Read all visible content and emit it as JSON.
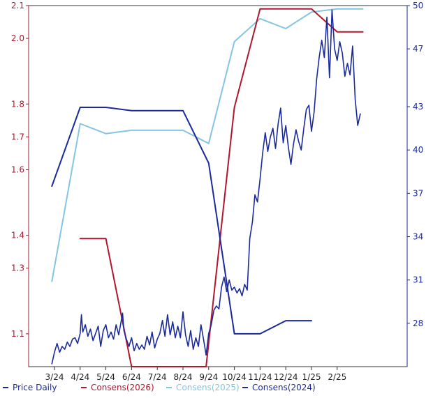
{
  "chart_data": {
    "type": "line",
    "title": "",
    "x": [
      "3/24",
      "4/24",
      "5/24",
      "6/24",
      "7/24",
      "8/24",
      "9/24",
      "10/24",
      "11/24",
      "12/24",
      "1/25",
      "2/25"
    ],
    "axes": {
      "left": {
        "ylim": [
          1.0,
          2.1
        ],
        "ticks": [
          "1.1",
          "1.3",
          "1.4",
          "1.6",
          "1.7",
          "1.8",
          "2.0",
          "2.1"
        ],
        "tick_values": [
          1.1,
          1.3,
          1.4,
          1.6,
          1.7,
          1.8,
          2.0,
          2.1
        ],
        "color": "#b0172c"
      },
      "right": {
        "ylim": [
          25,
          50
        ],
        "ticks": [
          "28",
          "31",
          "34",
          "37",
          "40",
          "43",
          "47",
          "50"
        ],
        "tick_values": [
          28,
          31,
          34,
          37,
          40,
          43,
          47,
          50
        ],
        "color": "#1a2a9c"
      }
    },
    "grid": false,
    "legend": {
      "position": "bottom"
    },
    "series": [
      {
        "name": "Price Daily",
        "axis": "right",
        "color": "#1a2a9c",
        "points": [
          [
            2.9,
            25.2
          ],
          [
            3.0,
            26.0
          ],
          [
            3.1,
            26.6
          ],
          [
            3.2,
            26.0
          ],
          [
            3.3,
            26.4
          ],
          [
            3.4,
            26.2
          ],
          [
            3.5,
            26.7
          ],
          [
            3.6,
            26.4
          ],
          [
            3.7,
            26.9
          ],
          [
            3.8,
            27.0
          ],
          [
            3.9,
            26.6
          ],
          [
            4.0,
            27.3
          ],
          [
            4.05,
            28.6
          ],
          [
            4.1,
            27.4
          ],
          [
            4.2,
            27.9
          ],
          [
            4.3,
            27.1
          ],
          [
            4.4,
            27.6
          ],
          [
            4.5,
            26.8
          ],
          [
            4.6,
            27.3
          ],
          [
            4.7,
            27.8
          ],
          [
            4.8,
            26.4
          ],
          [
            4.9,
            27.5
          ],
          [
            5.0,
            27.9
          ],
          [
            5.1,
            27.0
          ],
          [
            5.2,
            27.4
          ],
          [
            5.3,
            26.9
          ],
          [
            5.4,
            27.9
          ],
          [
            5.5,
            27.2
          ],
          [
            5.6,
            28.2
          ],
          [
            5.65,
            28.7
          ],
          [
            5.7,
            27.5
          ],
          [
            5.8,
            26.9
          ],
          [
            5.9,
            26.4
          ],
          [
            6.0,
            27.0
          ],
          [
            6.1,
            26.1
          ],
          [
            6.2,
            26.6
          ],
          [
            6.3,
            26.2
          ],
          [
            6.4,
            26.5
          ],
          [
            6.5,
            26.2
          ],
          [
            6.6,
            27.1
          ],
          [
            6.7,
            26.5
          ],
          [
            6.8,
            27.4
          ],
          [
            6.9,
            26.3
          ],
          [
            7.0,
            26.9
          ],
          [
            7.1,
            27.3
          ],
          [
            7.2,
            28.2
          ],
          [
            7.3,
            27.1
          ],
          [
            7.4,
            28.6
          ],
          [
            7.5,
            27.2
          ],
          [
            7.6,
            28.1
          ],
          [
            7.7,
            27.0
          ],
          [
            7.8,
            27.8
          ],
          [
            7.9,
            27.0
          ],
          [
            8.0,
            28.8
          ],
          [
            8.1,
            27.2
          ],
          [
            8.2,
            26.4
          ],
          [
            8.3,
            27.5
          ],
          [
            8.4,
            26.2
          ],
          [
            8.5,
            27.0
          ],
          [
            8.6,
            26.4
          ],
          [
            8.7,
            27.9
          ],
          [
            8.8,
            26.9
          ],
          [
            8.9,
            25.8
          ],
          [
            9.0,
            27.3
          ],
          [
            9.1,
            27.9
          ],
          [
            9.2,
            28.9
          ],
          [
            9.3,
            29.2
          ],
          [
            9.4,
            29.0
          ],
          [
            9.5,
            30.5
          ],
          [
            9.6,
            31.2
          ],
          [
            9.7,
            30.2
          ],
          [
            9.8,
            31.0
          ],
          [
            9.9,
            30.3
          ],
          [
            10.0,
            30.5
          ],
          [
            10.1,
            30.1
          ],
          [
            10.2,
            30.4
          ],
          [
            10.3,
            29.9
          ],
          [
            10.4,
            30.7
          ],
          [
            10.5,
            30.3
          ],
          [
            10.6,
            33.9
          ],
          [
            10.7,
            35.0
          ],
          [
            10.8,
            36.9
          ],
          [
            10.9,
            36.4
          ],
          [
            11.0,
            38.0
          ],
          [
            11.1,
            39.8
          ],
          [
            11.2,
            41.2
          ],
          [
            11.3,
            39.9
          ],
          [
            11.4,
            40.9
          ],
          [
            11.5,
            41.5
          ],
          [
            11.6,
            40.1
          ],
          [
            11.7,
            41.8
          ],
          [
            11.8,
            42.9
          ],
          [
            11.9,
            40.5
          ],
          [
            12.0,
            41.7
          ],
          [
            12.1,
            40.2
          ],
          [
            12.2,
            39.0
          ],
          [
            12.3,
            40.4
          ],
          [
            12.4,
            41.4
          ],
          [
            12.5,
            40.6
          ],
          [
            12.6,
            40.0
          ],
          [
            12.7,
            41.5
          ],
          [
            12.8,
            42.8
          ],
          [
            12.9,
            43.1
          ],
          [
            13.0,
            41.3
          ],
          [
            13.1,
            42.6
          ],
          [
            13.2,
            44.9
          ],
          [
            13.3,
            46.4
          ],
          [
            13.4,
            47.6
          ],
          [
            13.5,
            46.4
          ],
          [
            13.6,
            49.2
          ],
          [
            13.7,
            45.0
          ],
          [
            13.8,
            49.7
          ],
          [
            13.9,
            47.0
          ],
          [
            14.0,
            46.2
          ],
          [
            14.1,
            47.5
          ],
          [
            14.2,
            46.7
          ],
          [
            14.3,
            45.1
          ],
          [
            14.4,
            46.0
          ],
          [
            14.5,
            45.2
          ],
          [
            14.6,
            47.2
          ],
          [
            14.7,
            43.5
          ],
          [
            14.8,
            41.7
          ],
          [
            14.9,
            42.5
          ]
        ]
      },
      {
        "name": "Consens(2026)",
        "axis": "left",
        "color": "#b0172c",
        "points": [
          [
            4.0,
            1.39
          ],
          [
            5.0,
            1.39
          ],
          [
            6.0,
            1.0
          ],
          [
            8.0,
            1.0
          ],
          [
            8.9,
            1.0
          ],
          [
            10.0,
            1.79
          ],
          [
            11.0,
            2.09
          ],
          [
            13.0,
            2.09
          ],
          [
            14.0,
            2.02
          ],
          [
            15.0,
            2.02
          ]
        ]
      },
      {
        "name": "Consens(2025)",
        "axis": "left",
        "color": "#85c5e3",
        "points": [
          [
            2.9,
            1.26
          ],
          [
            4.0,
            1.74
          ],
          [
            5.0,
            1.71
          ],
          [
            6.0,
            1.72
          ],
          [
            7.0,
            1.72
          ],
          [
            8.0,
            1.72
          ],
          [
            9.0,
            1.68
          ],
          [
            10.0,
            1.99
          ],
          [
            11.0,
            2.06
          ],
          [
            12.0,
            2.03
          ],
          [
            13.0,
            2.08
          ],
          [
            14.0,
            2.09
          ],
          [
            15.0,
            2.09
          ]
        ]
      },
      {
        "name": "Consens(2024)",
        "axis": "left",
        "color": "#1a2a9c",
        "points": [
          [
            2.9,
            1.55
          ],
          [
            4.0,
            1.79
          ],
          [
            5.0,
            1.79
          ],
          [
            6.0,
            1.78
          ],
          [
            7.0,
            1.78
          ],
          [
            8.0,
            1.78
          ],
          [
            9.0,
            1.62
          ],
          [
            10.0,
            1.1
          ],
          [
            11.0,
            1.1
          ],
          [
            12.0,
            1.14
          ],
          [
            13.0,
            1.14
          ]
        ]
      }
    ]
  }
}
